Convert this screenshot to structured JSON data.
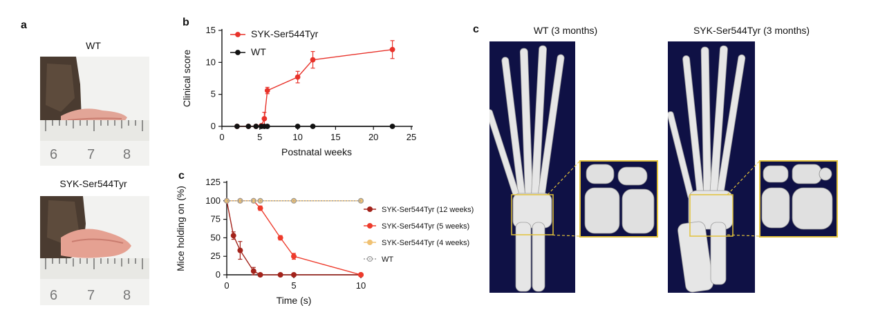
{
  "panel_a": {
    "letter": "a",
    "top_label": "WT",
    "bottom_label": "SYK-Ser544Tyr",
    "ruler_numbers": [
      "6",
      "7",
      "8"
    ]
  },
  "panel_b": {
    "letter": "b"
  },
  "panel_c_left": {
    "letter": "c"
  },
  "panel_c_right": {
    "letter": "c",
    "left_title": "WT (3 months)",
    "right_title": "SYK-Ser544Tyr (3 months)"
  },
  "chart_data": [
    {
      "type": "line",
      "xlabel": "Postnatal weeks",
      "ylabel": "Clinical score",
      "xlim": [
        0,
        25
      ],
      "ylim": [
        0,
        15
      ],
      "xticks": [
        0,
        5,
        10,
        15,
        20,
        25
      ],
      "yticks": [
        0,
        5,
        10,
        15
      ],
      "legend_position": "top-left",
      "series": [
        {
          "name": "SYK-Ser544Tyr",
          "color": "#e8322a",
          "x": [
            2,
            3.5,
            4.5,
            5.2,
            5.6,
            6,
            10,
            12,
            22.5
          ],
          "y": [
            0,
            0,
            0,
            0.1,
            1.2,
            5.6,
            7.7,
            10.4,
            12
          ],
          "err": [
            0,
            0,
            0,
            0.2,
            1.0,
            0.5,
            0.9,
            1.3,
            1.4
          ]
        },
        {
          "name": "WT",
          "color": "#111111",
          "x": [
            2,
            3.5,
            4.5,
            5.2,
            5.6,
            6,
            10,
            12,
            22.5
          ],
          "y": [
            0,
            0,
            0,
            0,
            0,
            0,
            0,
            0,
            0
          ],
          "err": [
            0,
            0,
            0,
            0,
            0,
            0,
            0,
            0,
            0
          ]
        }
      ]
    },
    {
      "type": "line",
      "xlabel": "Time (s)",
      "ylabel": "Mice holding on (%)",
      "xlim": [
        0,
        10
      ],
      "ylim": [
        0,
        125
      ],
      "xticks": [
        0,
        5,
        10
      ],
      "yticks": [
        0,
        25,
        50,
        75,
        100,
        125
      ],
      "legend_position": "right",
      "series": [
        {
          "name": "SYK-Ser544Tyr (12 weeks)",
          "color": "#a3231b",
          "x": [
            0,
            0.5,
            1,
            2,
            2.5,
            4,
            5,
            10
          ],
          "y": [
            100,
            53,
            33,
            5,
            0,
            0,
            0,
            0
          ],
          "err": [
            0,
            5,
            12,
            5,
            0,
            0,
            0,
            0
          ]
        },
        {
          "name": "SYK-Ser544Tyr (5 weeks)",
          "color": "#ee3b2c",
          "x": [
            0,
            1,
            2,
            2.5,
            4,
            5,
            10
          ],
          "y": [
            100,
            100,
            100,
            90,
            50,
            25,
            0
          ],
          "err": [
            0,
            0,
            0,
            3,
            3,
            4,
            0
          ]
        },
        {
          "name": "SYK-Ser544Tyr (4 weeks)",
          "color": "#f0c172",
          "x": [
            0,
            1,
            2,
            2.5,
            5,
            10
          ],
          "y": [
            100,
            100,
            100,
            100,
            100,
            100
          ],
          "err": [
            0,
            0,
            0,
            0,
            0,
            0
          ]
        },
        {
          "name": "WT",
          "color": "#9a9a9a",
          "x": [
            0,
            1,
            2,
            2.5,
            5,
            10
          ],
          "y": [
            100,
            100,
            100,
            100,
            100,
            100
          ],
          "err": [
            0,
            0,
            0,
            0,
            0,
            0
          ]
        }
      ]
    }
  ]
}
